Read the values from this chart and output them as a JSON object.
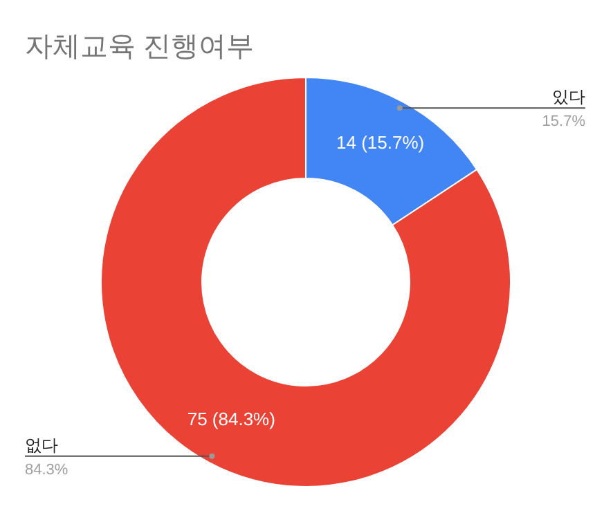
{
  "chart_data": {
    "type": "donut",
    "title": "자체교육 진행여부",
    "categories": [
      "있다",
      "없다"
    ],
    "values": [
      14,
      75
    ],
    "colors": [
      "#4285f4",
      "#ea4335"
    ],
    "value_labels": [
      "14 (15.7%)",
      "75 (84.3%)"
    ],
    "annotations": [
      "15.7%",
      "84.3%"
    ],
    "legend": false
  }
}
